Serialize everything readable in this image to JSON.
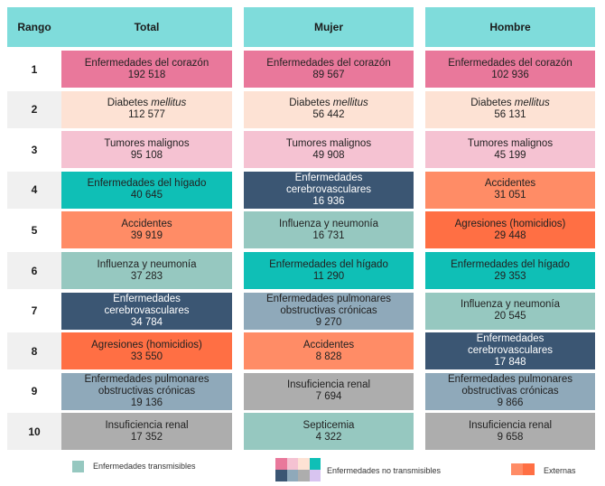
{
  "headers": {
    "rank": "Rango",
    "total": "Total",
    "mujer": "Mujer",
    "hombre": "Hombre"
  },
  "ranks": [
    "1",
    "2",
    "3",
    "4",
    "5",
    "6",
    "7",
    "8",
    "9",
    "10"
  ],
  "total": [
    {
      "l1": "Enfermedades del corazón",
      "v": "192 518",
      "c": "#e9789b"
    },
    {
      "l1": "Diabetes ",
      "it": "mellitus",
      "v": "112 577",
      "c": "#fde2d4"
    },
    {
      "l1": "Tumores malignos",
      "v": "95 108",
      "c": "#f5c2d2"
    },
    {
      "l1": "Enfermedades del hígado",
      "v": "40 645",
      "c": "#0fbfb6"
    },
    {
      "l1": "Accidentes",
      "v": "39 919",
      "c": "#ff8c66"
    },
    {
      "l1": "Influenza y neumonía",
      "v": "37 283",
      "c": "#96c8c0"
    },
    {
      "l1": "Enfermedades",
      "l2": "cerebrovasculares",
      "v": "34 784",
      "c": "#3b5673",
      "dark": true
    },
    {
      "l1": "Agresiones (homicidios)",
      "v": "33 550",
      "c": "#ff6f44"
    },
    {
      "l1": "Enfermedades pulmonares",
      "l2": "obstructivas crónicas",
      "v": "19 136",
      "c": "#8fa9ba"
    },
    {
      "l1": "Insuficiencia renal",
      "v": "17 352",
      "c": "#adadad"
    }
  ],
  "mujer": [
    {
      "l1": "Enfermedades del corazón",
      "v": "89 567",
      "c": "#e9789b"
    },
    {
      "l1": "Diabetes ",
      "it": "mellitus",
      "v": "56 442",
      "c": "#fde2d4"
    },
    {
      "l1": "Tumores malignos",
      "v": "49 908",
      "c": "#f5c2d2"
    },
    {
      "l1": "Enfermedades",
      "l2": "cerebrovasculares",
      "v": "16 936",
      "c": "#3b5673",
      "dark": true
    },
    {
      "l1": "Influenza y neumonía",
      "v": "16 731",
      "c": "#96c8c0"
    },
    {
      "l1": "Enfermedades del hígado",
      "v": "11 290",
      "c": "#0fbfb6"
    },
    {
      "l1": "Enfermedades pulmonares",
      "l2": "obstructivas crónicas",
      "v": "9 270",
      "c": "#8fa9ba"
    },
    {
      "l1": "Accidentes",
      "v": "8 828",
      "c": "#ff8c66"
    },
    {
      "l1": "Insuficiencia renal",
      "v": "7 694",
      "c": "#adadad"
    },
    {
      "l1": "Septicemia",
      "v": "4 322",
      "c": "#96c8c0"
    }
  ],
  "hombre": [
    {
      "l1": "Enfermedades del corazón",
      "v": "102 936",
      "c": "#e9789b"
    },
    {
      "l1": "Diabetes ",
      "it": "mellitus",
      "v": "56 131",
      "c": "#fde2d4"
    },
    {
      "l1": "Tumores malignos",
      "v": "45 199",
      "c": "#f5c2d2"
    },
    {
      "l1": "Accidentes",
      "v": "31 051",
      "c": "#ff8c66"
    },
    {
      "l1": "Agresiones (homicidios)",
      "v": "29 448",
      "c": "#ff6f44"
    },
    {
      "l1": "Enfermedades del hígado",
      "v": "29 353",
      "c": "#0fbfb6"
    },
    {
      "l1": "Influenza y neumonía",
      "v": "20 545",
      "c": "#96c8c0"
    },
    {
      "l1": "Enfermedades",
      "l2": "cerebrovasculares",
      "v": "17 848",
      "c": "#3b5673",
      "dark": true
    },
    {
      "l1": "Enfermedades pulmonares",
      "l2": "obstructivas crónicas",
      "v": "9 866",
      "c": "#8fa9ba"
    },
    {
      "l1": "Insuficiencia renal",
      "v": "9 658",
      "c": "#adadad"
    }
  ],
  "legend": {
    "transmisibles": "Enfermedades transmisibles",
    "no_transmisibles": "Enfermedades no transmisibles",
    "externas": "Externas",
    "transmisibles_color": "#96c8c0",
    "no_transmisibles_colors": [
      "#e9789b",
      "#f5c2d2",
      "#fde2d4",
      "#0fbfb6",
      "#3b5673",
      "#8fa9ba",
      "#adadad",
      "#d8c4f0"
    ],
    "externas_colors": [
      "#ff8c66",
      "#ff6f44"
    ]
  }
}
